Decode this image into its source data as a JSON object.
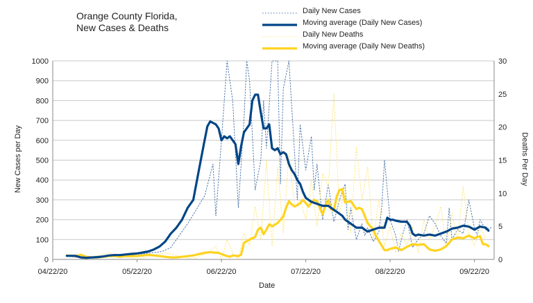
{
  "chart_data": {
    "type": "line",
    "title": "Orange County Florida,",
    "subtitle": "New Cases & Deaths",
    "xlabel": "Date",
    "ylabel": "New Cases per Day",
    "y2label": "Deaths Per Day",
    "ylim": [
      0,
      1000
    ],
    "y2lim": [
      0,
      30
    ],
    "y_ticks": [
      0,
      100,
      200,
      300,
      400,
      500,
      600,
      700,
      800,
      900,
      1000
    ],
    "y2_ticks": [
      0,
      5,
      10,
      15,
      20,
      25,
      30
    ],
    "x_ticks": [
      "04/22/20",
      "05/22/20",
      "06/22/20",
      "07/22/20",
      "08/22/20",
      "09/22/20"
    ],
    "x_range_days": [
      0,
      157
    ],
    "grid": "horizontal",
    "legend_position": "top-right",
    "colors": {
      "cases_daily": "#4a74a8",
      "cases_avg": "#004586",
      "deaths_daily": "#ffe67a",
      "deaths_avg": "#ffd320",
      "grid": "#c8c8c8",
      "axis": "#888888"
    },
    "series": [
      {
        "name": "Daily New Cases",
        "axis": "left",
        "style": "dotted",
        "x": [
          6,
          9,
          12,
          15,
          18,
          21,
          24,
          27,
          30,
          33,
          36,
          39,
          42,
          45,
          48,
          51,
          54,
          57,
          58,
          60,
          62,
          63,
          64,
          66,
          68,
          69,
          70,
          72,
          74,
          75,
          76,
          78,
          80,
          81,
          82,
          84,
          86,
          87,
          88,
          90,
          92,
          93,
          94,
          96,
          98,
          99,
          100,
          102,
          104,
          105,
          106,
          108,
          110,
          111,
          112,
          114,
          116,
          117,
          118,
          120,
          122,
          123,
          124,
          126,
          128,
          130,
          132,
          134,
          136,
          138,
          140,
          141,
          142,
          144,
          146,
          148,
          150,
          151,
          152,
          154,
          156
        ],
        "y": [
          15,
          10,
          5,
          8,
          12,
          20,
          15,
          25,
          20,
          30,
          35,
          40,
          60,
          120,
          180,
          250,
          320,
          480,
          220,
          600,
          1000,
          900,
          800,
          260,
          700,
          1000,
          900,
          350,
          500,
          800,
          560,
          1000,
          1000,
          380,
          860,
          1000,
          540,
          300,
          680,
          450,
          620,
          350,
          480,
          200,
          380,
          280,
          190,
          300,
          380,
          150,
          260,
          100,
          180,
          120,
          160,
          90,
          140,
          260,
          500,
          200,
          120,
          40,
          100,
          200,
          60,
          100,
          130,
          220,
          180,
          120,
          80,
          260,
          100,
          150,
          130,
          300,
          160,
          120,
          200,
          150,
          160
        ]
      },
      {
        "name": "Moving average (Daily New Cases)",
        "axis": "left",
        "style": "solid",
        "x": [
          5,
          8,
          10,
          12,
          14,
          16,
          18,
          20,
          22,
          24,
          26,
          28,
          30,
          32,
          34,
          36,
          38,
          40,
          42,
          44,
          46,
          48,
          50,
          52,
          54,
          55,
          56,
          58,
          59,
          60,
          61,
          62,
          63,
          64,
          65,
          66,
          67,
          68,
          70,
          71,
          72,
          73,
          74,
          75,
          76,
          77,
          78,
          79,
          80,
          81,
          82,
          83,
          84,
          85,
          86,
          87,
          88,
          89,
          90,
          92,
          94,
          96,
          98,
          99,
          100,
          101,
          102,
          103,
          104,
          106,
          108,
          110,
          112,
          114,
          116,
          118,
          119,
          120,
          121,
          122,
          124,
          126,
          127,
          128,
          129,
          130,
          132,
          134,
          136,
          138,
          140,
          142,
          144,
          146,
          148,
          150,
          152,
          154,
          155
        ],
        "y": [
          18,
          18,
          10,
          8,
          10,
          12,
          15,
          20,
          22,
          22,
          25,
          28,
          30,
          35,
          40,
          50,
          65,
          90,
          130,
          160,
          200,
          260,
          300,
          450,
          600,
          670,
          695,
          680,
          660,
          600,
          620,
          610,
          620,
          600,
          580,
          480,
          570,
          640,
          680,
          800,
          830,
          830,
          740,
          660,
          660,
          680,
          560,
          550,
          560,
          530,
          540,
          530,
          480,
          450,
          430,
          400,
          380,
          340,
          310,
          290,
          280,
          270,
          270,
          260,
          250,
          240,
          230,
          220,
          200,
          180,
          160,
          160,
          140,
          150,
          160,
          160,
          210,
          200,
          200,
          195,
          190,
          190,
          170,
          130,
          120,
          125,
          120,
          125,
          120,
          130,
          140,
          155,
          160,
          170,
          165,
          150,
          165,
          160,
          145
        ]
      },
      {
        "name": "Daily New Deaths",
        "axis": "right",
        "style": "dotted",
        "x": [
          10,
          20,
          30,
          40,
          50,
          55,
          58,
          60,
          62,
          64,
          66,
          68,
          70,
          72,
          74,
          76,
          78,
          80,
          82,
          84,
          86,
          88,
          90,
          92,
          94,
          96,
          98,
          100,
          102,
          104,
          106,
          108,
          110,
          112,
          114,
          116,
          118,
          120,
          122,
          124,
          126,
          128,
          130,
          132,
          134,
          136,
          138,
          140,
          142,
          144,
          146,
          148,
          150,
          152,
          154
        ],
        "y": [
          0,
          1,
          0,
          1,
          0,
          1,
          2,
          0,
          3,
          1,
          0,
          4,
          2,
          8,
          3,
          15,
          2,
          14,
          4,
          16,
          8,
          9,
          6,
          12,
          5,
          13,
          11,
          25,
          7,
          11,
          4,
          17,
          9,
          14,
          3,
          9,
          2,
          5,
          1,
          4,
          2,
          5,
          1,
          6,
          3,
          5,
          8,
          2,
          7,
          3,
          11,
          4,
          2,
          5,
          3
        ]
      },
      {
        "name": "Moving average (Daily New Deaths)",
        "axis": "right",
        "style": "solid",
        "x": [
          5,
          8,
          10,
          12,
          14,
          16,
          18,
          20,
          22,
          24,
          26,
          28,
          30,
          32,
          34,
          36,
          38,
          40,
          42,
          44,
          46,
          48,
          50,
          52,
          54,
          56,
          58,
          59,
          60,
          62,
          63,
          64,
          66,
          67,
          68,
          70,
          71,
          72,
          73,
          74,
          75,
          76,
          77,
          78,
          80,
          82,
          83,
          84,
          85,
          86,
          87,
          88,
          89,
          90,
          91,
          92,
          93,
          94,
          95,
          96,
          97,
          98,
          99,
          100,
          101,
          102,
          103,
          104,
          106,
          108,
          109,
          110,
          112,
          114,
          115,
          116,
          118,
          119,
          120,
          122,
          124,
          126,
          128,
          130,
          132,
          134,
          136,
          138,
          140,
          142,
          144,
          146,
          148,
          150,
          151,
          152,
          153,
          154,
          155
        ],
        "y": [
          0.6,
          0.5,
          0.7,
          0.4,
          0.3,
          0.3,
          0.4,
          0.5,
          0.5,
          0.4,
          0.5,
          0.5,
          0.5,
          0.6,
          0.7,
          0.6,
          0.5,
          0.4,
          0.3,
          0.3,
          0.4,
          0.5,
          0.6,
          0.8,
          1.0,
          1.1,
          1.0,
          1.0,
          0.8,
          0.5,
          0.4,
          0.6,
          0.5,
          0.7,
          2.5,
          3.0,
          3.2,
          3.4,
          4.5,
          4.8,
          3.8,
          4.5,
          5.3,
          5.0,
          5.5,
          6.5,
          7.8,
          8.8,
          8.3,
          8.0,
          8.2,
          8.5,
          9.0,
          8.5,
          8.0,
          8.6,
          9.0,
          8.8,
          7.8,
          6.8,
          8.2,
          9.0,
          7.6,
          7.4,
          9.5,
          10.5,
          10.6,
          8.6,
          8.8,
          7.6,
          7.8,
          7.6,
          5.5,
          4.5,
          3.5,
          2.8,
          1.4,
          1.4,
          1.6,
          1.8,
          1.4,
          1.9,
          2.3,
          2.2,
          2.3,
          1.5,
          1.3,
          1.5,
          2.0,
          3.0,
          3.3,
          3.2,
          3.6,
          3.2,
          3.4,
          3.5,
          2.3,
          2.3,
          2.0
        ]
      }
    ]
  }
}
